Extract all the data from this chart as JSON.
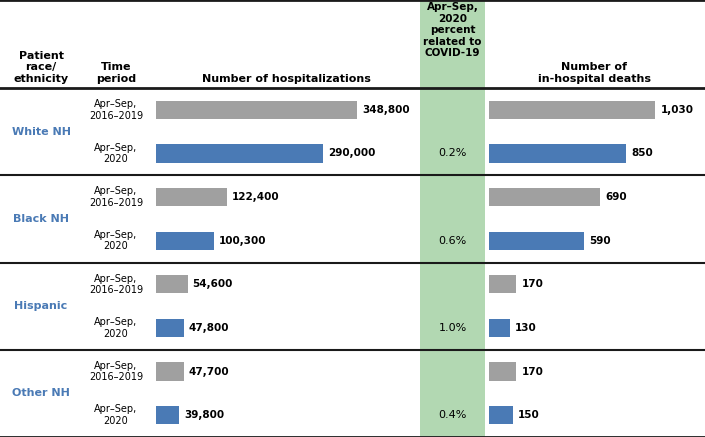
{
  "races": [
    "White NH",
    "Black NH",
    "Hispanic",
    "Other NH"
  ],
  "hosp_2016_2019": [
    348800,
    122400,
    54600,
    47700
  ],
  "hosp_2020": [
    290000,
    100300,
    47800,
    39800
  ],
  "deaths_2016_2019": [
    1030,
    690,
    170,
    170
  ],
  "deaths_2020": [
    850,
    590,
    130,
    150
  ],
  "covid_pct": [
    "0.2%",
    "0.6%",
    "1.0%",
    "0.4%"
  ],
  "hosp_labels_2016_2019": [
    "348,800",
    "122,400",
    "54,600",
    "47,700"
  ],
  "hosp_labels_2020": [
    "290,000",
    "100,300",
    "47,800",
    "39,800"
  ],
  "deaths_labels_2016_2019": [
    "1,030",
    "690",
    "170",
    "170"
  ],
  "deaths_labels_2020": [
    "850",
    "590",
    "130",
    "150"
  ],
  "color_gray": "#a0a0a0",
  "color_blue": "#4a7ab5",
  "color_green_bg": "#b2d8b2",
  "line_color": "#1a1a1a",
  "race_label_color": "#4a7ab5",
  "col_header": [
    "Patient\nrace/\nethnicity",
    "Time\nperiod",
    "Number of hospitalizations",
    "Apr–Sep,\n2020\npercent\nrelated to\nCOVID-19",
    "Number of\nin-hospital deaths"
  ],
  "time_labels": [
    "Apr–Sep,\n2016–2019",
    "Apr–Sep,\n2020"
  ],
  "max_hosp": 348800,
  "max_deaths": 1030
}
